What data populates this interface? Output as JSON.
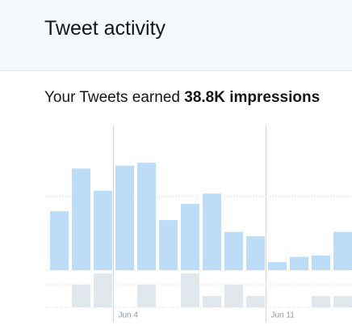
{
  "header": {
    "title": "Tweet activity"
  },
  "summary": {
    "text": "Your Tweets earned ",
    "highlight": "38.8K impressions"
  },
  "chart_data": [
    {
      "type": "bar",
      "categories": [
        null,
        null,
        null,
        "Jun 4",
        null,
        null,
        null,
        null,
        null,
        null,
        "Jun 11",
        null,
        null,
        null
      ],
      "values": [
        40,
        69,
        54,
        71,
        73,
        34,
        45,
        52,
        26,
        23,
        5.5,
        9,
        10,
        26
      ],
      "color": "#bcdcf7",
      "ylim": [
        0,
        100
      ],
      "yticks": [
        0,
        50
      ],
      "grid": true
    },
    {
      "type": "bar",
      "values": [
        0,
        2,
        3,
        0,
        2,
        0,
        3,
        1,
        2,
        1,
        0,
        0,
        1,
        1
      ],
      "color": "#e1e8ed",
      "ylim": [
        0,
        3
      ],
      "yticks": [
        0,
        2
      ],
      "grid": true
    }
  ]
}
